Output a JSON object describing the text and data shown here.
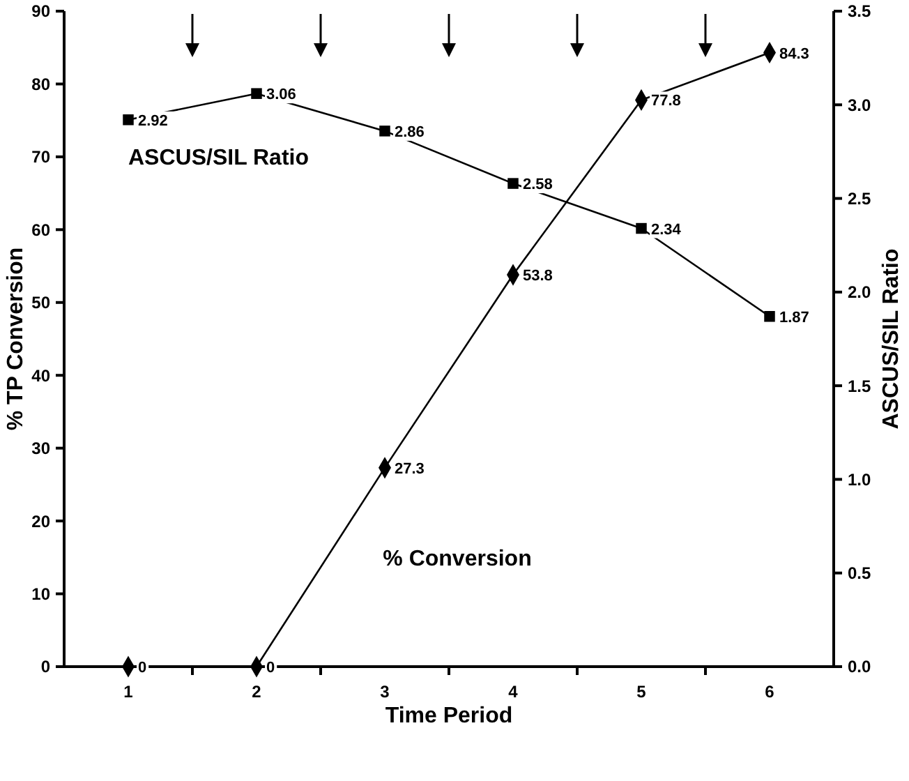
{
  "chart_data": {
    "type": "line",
    "xlabel": "Time Period",
    "ylabel": "% TP Conversion",
    "y2label": "ASCUS/SIL Ratio",
    "categories": [
      "1",
      "2",
      "3",
      "4",
      "5",
      "6"
    ],
    "series": [
      {
        "name": "% Conversion",
        "color": "#000000",
        "marker": "diamond",
        "values": [
          0,
          0,
          27.3,
          53.8,
          77.8,
          84.3
        ]
      },
      {
        "name": "ASCUS/SIL Ratio",
        "color": "#000000",
        "marker": "square",
        "axis": "y2",
        "values": [
          2.92,
          3.06,
          2.86,
          2.58,
          2.34,
          1.87
        ]
      }
    ],
    "ylim": [
      0,
      90
    ],
    "yticks": [
      0,
      10,
      20,
      30,
      40,
      50,
      60,
      70,
      80,
      90
    ],
    "y2lim": [
      0,
      3.5
    ],
    "y2ticks": [
      {
        "value": 0,
        "label": "0.0"
      },
      0.5,
      {
        "value": 1,
        "label": "1.0"
      },
      1.5,
      {
        "value": 2,
        "label": "2.0"
      },
      2.5,
      {
        "value": 3,
        "label": "3.0"
      },
      3.5
    ],
    "data_labels": true,
    "grid": false
  }
}
